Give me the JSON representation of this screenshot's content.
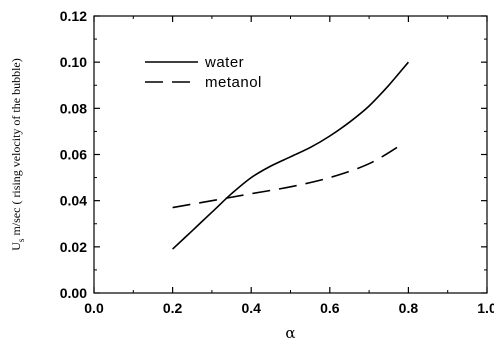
{
  "chart_data": {
    "type": "line",
    "xlabel": "α",
    "ylabel": "U",
    "ylabel_sub": "s",
    "ylabel_rest": " m/sec ( rising velocity of the bubble)",
    "xlim": [
      0.0,
      1.0
    ],
    "ylim": [
      0.0,
      0.12
    ],
    "xticks": [
      "0.0",
      "0.2",
      "0.4",
      "0.6",
      "0.8",
      "1.0"
    ],
    "yticks": [
      "0.00",
      "0.02",
      "0.04",
      "0.06",
      "0.08",
      "0.10",
      "0.12"
    ],
    "grid": false,
    "legend_position": "top-left",
    "series": [
      {
        "name": "water",
        "style": "solid",
        "color": "#000000",
        "x": [
          0.2,
          0.25,
          0.3,
          0.35,
          0.4,
          0.45,
          0.5,
          0.55,
          0.6,
          0.65,
          0.7,
          0.75,
          0.8
        ],
        "y": [
          0.019,
          0.027,
          0.035,
          0.043,
          0.05,
          0.055,
          0.059,
          0.063,
          0.068,
          0.074,
          0.081,
          0.09,
          0.1
        ]
      },
      {
        "name": "metanol",
        "style": "dashed",
        "color": "#000000",
        "x": [
          0.2,
          0.3,
          0.4,
          0.5,
          0.6,
          0.7,
          0.78
        ],
        "y": [
          0.037,
          0.04,
          0.043,
          0.046,
          0.05,
          0.056,
          0.064
        ]
      }
    ]
  }
}
